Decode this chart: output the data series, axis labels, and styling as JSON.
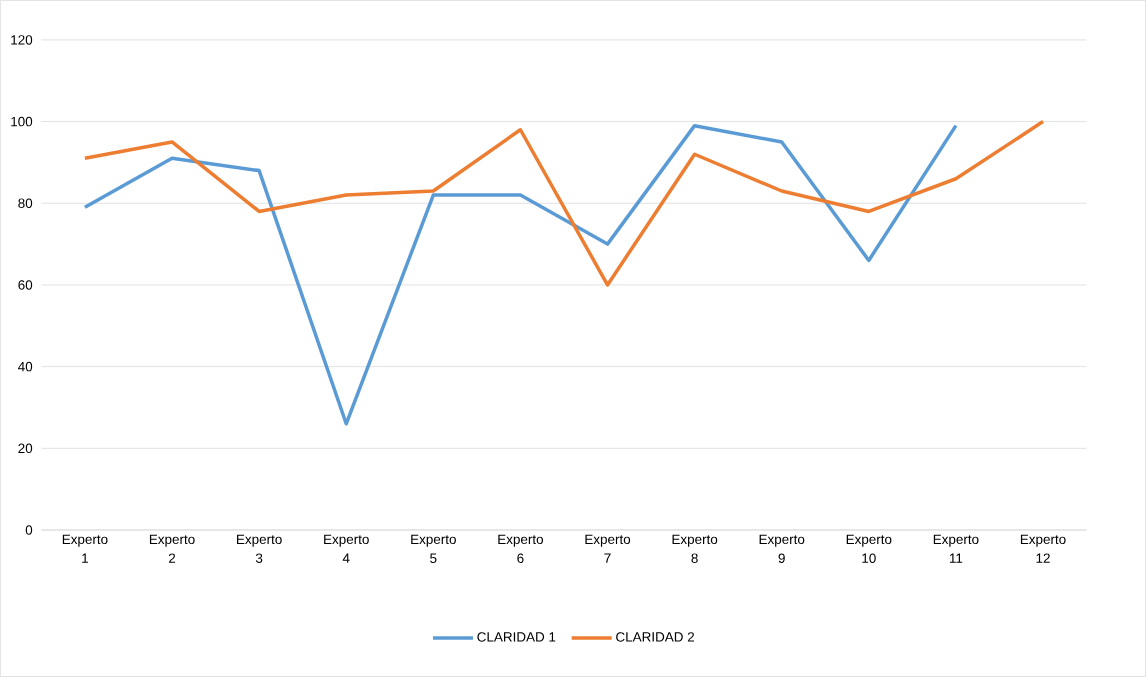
{
  "chart_data": {
    "type": "line",
    "categories": [
      "Experto 1",
      "Experto 2",
      "Experto 3",
      "Experto 4",
      "Experto 5",
      "Experto 6",
      "Experto 7",
      "Experto 8",
      "Experto 9",
      "Experto 10",
      "Experto 11",
      "Experto 12"
    ],
    "series": [
      {
        "name": "CLARIDAD 1",
        "color": "#5b9bd5",
        "values": [
          79,
          91,
          88,
          26,
          82,
          82,
          70,
          99,
          95,
          66,
          99,
          null
        ]
      },
      {
        "name": "CLARIDAD 2",
        "color": "#ed7d31",
        "values": [
          91,
          95,
          78,
          82,
          83,
          98,
          60,
          92,
          83,
          78,
          86,
          100
        ]
      }
    ],
    "ylim": [
      0,
      120
    ],
    "yticks": [
      0,
      20,
      40,
      60,
      80,
      100,
      120
    ],
    "grid": "y",
    "legend": "bottom",
    "marker": "none",
    "line_style": "solid"
  }
}
